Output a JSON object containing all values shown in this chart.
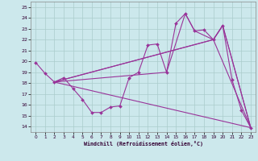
{
  "xlabel": "Windchill (Refroidissement éolien,°C)",
  "background_color": "#cce8ec",
  "grid_color": "#aacccc",
  "line_color": "#993399",
  "xlim": [
    -0.5,
    23.5
  ],
  "ylim": [
    13.5,
    25.5
  ],
  "xticks": [
    0,
    1,
    2,
    3,
    4,
    5,
    6,
    7,
    8,
    9,
    10,
    11,
    12,
    13,
    14,
    15,
    16,
    17,
    18,
    19,
    20,
    21,
    22,
    23
  ],
  "yticks": [
    14,
    15,
    16,
    17,
    18,
    19,
    20,
    21,
    22,
    23,
    24,
    25
  ],
  "line1_x": [
    0,
    1,
    2,
    3,
    4,
    5,
    6,
    7,
    8,
    9,
    10,
    11,
    12,
    13,
    14,
    15,
    16,
    17,
    18,
    19,
    20,
    21,
    22,
    23
  ],
  "line1_y": [
    19.9,
    18.9,
    18.1,
    18.5,
    17.5,
    16.5,
    15.3,
    15.3,
    15.8,
    15.9,
    18.5,
    19.0,
    21.5,
    21.6,
    19.0,
    23.5,
    24.4,
    22.8,
    22.9,
    22.0,
    23.3,
    18.3,
    15.5,
    13.9
  ],
  "line2_x": [
    2,
    23
  ],
  "line2_y": [
    18.1,
    13.9
  ],
  "line3_x": [
    2,
    19,
    23
  ],
  "line3_y": [
    18.1,
    22.0,
    13.9
  ],
  "line4_x": [
    2,
    19,
    20,
    23
  ],
  "line4_y": [
    18.1,
    22.0,
    23.3,
    13.9
  ],
  "line5_x": [
    2,
    14,
    16,
    17,
    19,
    20,
    23
  ],
  "line5_y": [
    18.1,
    19.0,
    24.4,
    22.8,
    22.0,
    23.3,
    13.9
  ]
}
